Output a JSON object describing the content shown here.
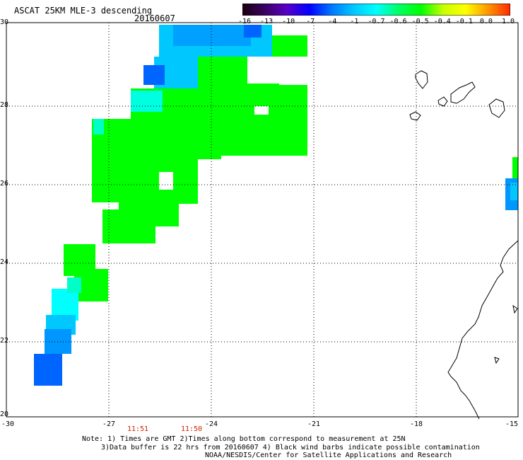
{
  "header": {
    "title": "ASCAT 25KM MLE-3 descending",
    "date": "20160607"
  },
  "colorbar": {
    "labels": [
      "-16",
      "-13",
      "-10",
      "-7",
      "-4",
      "-1",
      "-0.7",
      "-0.6",
      "-0.5",
      "-0.4",
      "-0.1",
      "0.0",
      "1.0"
    ],
    "colors": [
      "#1a0010",
      "#3a0060",
      "#5a00c8",
      "#0000ff",
      "#0078ff",
      "#00c8ff",
      "#00ffff",
      "#00ff64",
      "#00ff00",
      "#c8ff00",
      "#ffff00",
      "#ff9600",
      "#ff2800"
    ]
  },
  "axes": {
    "lat_labels": [
      "30",
      "28",
      "26",
      "24",
      "22",
      "20"
    ],
    "lon_labels": [
      "-30",
      "-27",
      "-24",
      "-21",
      "-18",
      "-15"
    ]
  },
  "times": [
    "11:51",
    "11:50"
  ],
  "notes": [
    "Note: 1) Times are GMT 2)Times along bottom correspond to measurement at 25N",
    "3)Data buffer is 22 hrs from 20160607 4) Black wind barbs indicate possible contamination",
    "NOAA/NESDIS/Center for Satellite Applications and Research"
  ]
}
